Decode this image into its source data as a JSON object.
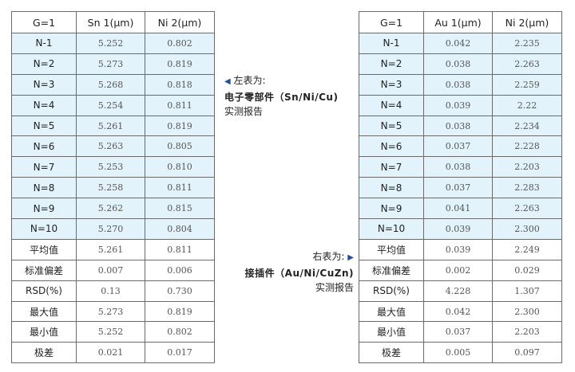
{
  "left_table": {
    "headers": [
      "G=1",
      "Sn 1(μm)",
      "Ni 2(μm)"
    ],
    "rows": [
      [
        "N-1",
        "5.252",
        "0.802"
      ],
      [
        "N=2",
        "5.273",
        "0.819"
      ],
      [
        "N=3",
        "5.268",
        "0.818"
      ],
      [
        "N=4",
        "5.254",
        "0.811"
      ],
      [
        "N=5",
        "5.261",
        "0.819"
      ],
      [
        "N=6",
        "5.263",
        "0.805"
      ],
      [
        "N=7",
        "5.253",
        "0.810"
      ],
      [
        "N=8",
        "5.258",
        "0.811"
      ],
      [
        "N=9",
        "5.262",
        "0.815"
      ],
      [
        "N=10",
        "5.270",
        "0.804"
      ]
    ],
    "stats": [
      [
        "平均值",
        "5.261",
        "0.811"
      ],
      [
        "标准偏差",
        "0.007",
        "0.006"
      ],
      [
        "RSD(%)",
        "0.13",
        "0.730"
      ],
      [
        "最大值",
        "5.273",
        "0.819"
      ],
      [
        "最小值",
        "5.252",
        "0.802"
      ],
      [
        "极差",
        "0.021",
        "0.017"
      ]
    ]
  },
  "right_table": {
    "headers": [
      "G=1",
      "Au 1(μm)",
      "Ni 2(μm)"
    ],
    "rows": [
      [
        "N-1",
        "0.042",
        "2.235"
      ],
      [
        "N=2",
        "0.038",
        "2.263"
      ],
      [
        "N=3",
        "0.038",
        "2.259"
      ],
      [
        "N=4",
        "0.039",
        "2.22"
      ],
      [
        "N=5",
        "0.038",
        "2.234"
      ],
      [
        "N=6",
        "0.037",
        "2.228"
      ],
      [
        "N=7",
        "0.038",
        "2.203"
      ],
      [
        "N=8",
        "0.037",
        "2.283"
      ],
      [
        "N=9",
        "0.041",
        "2.263"
      ],
      [
        "N=10",
        "0.039",
        "2.300"
      ]
    ],
    "stats": [
      [
        "平均值",
        "0.039",
        "2.249"
      ],
      [
        "标准偏差",
        "0.002",
        "0.029"
      ],
      [
        "RSD(%)",
        "4.228",
        "1.307"
      ],
      [
        "最大值",
        "0.042",
        "2.300"
      ],
      [
        "最小值",
        "0.037",
        "2.203"
      ],
      [
        "极差",
        "0.005",
        "0.097"
      ]
    ]
  },
  "left_note": {
    "line1": "左表为:",
    "line2": "电子零部件（Sn/Ni/Cu)",
    "line3": "实测报告",
    "arrow_icon": "triangle-left-icon"
  },
  "right_note": {
    "line1": "右表为:",
    "line2": "接插件（Au/Ni/CuZn)",
    "line3": "实测报告",
    "arrow_icon": "triangle-right-icon"
  },
  "colors": {
    "row_highlight": "#e3f3fb",
    "arrow": "#1f4fa0"
  }
}
